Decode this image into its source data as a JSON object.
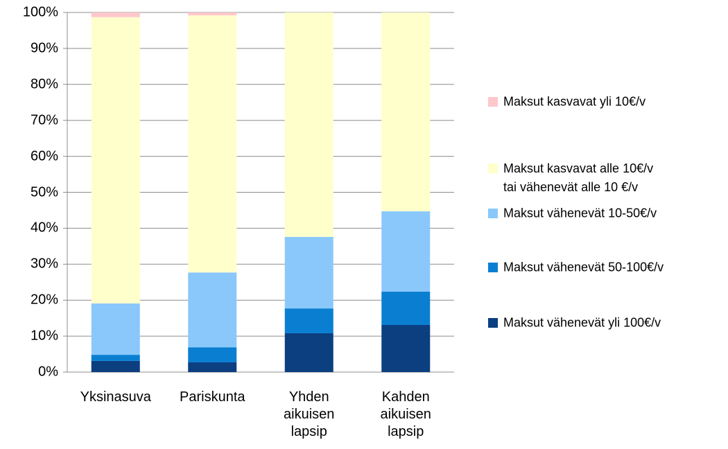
{
  "chart_data": {
    "type": "stacked_bar",
    "categories": [
      "Yksinasuva",
      "Pariskunta",
      "Yhden\naikuisen\nlapsip",
      "Kahden\naikuisen\nlapsip"
    ],
    "series": [
      {
        "name": "Maksut vähenevät yli 100€/v",
        "color": "#0b3f80",
        "values": [
          3.1,
          2.7,
          10.8,
          13.1
        ]
      },
      {
        "name": "Maksut vähenevät 50-100€/v",
        "color": "#0a7fd2",
        "values": [
          1.7,
          4.2,
          6.9,
          9.3
        ]
      },
      {
        "name": "Maksut vähenevät 10-50€/v",
        "color": "#8ac8fb",
        "values": [
          14.3,
          20.8,
          19.9,
          22.3
        ]
      },
      {
        "name": "Maksut kasvavat alle 10€/v\ntai vähenevät  alle 10 €/v",
        "color": "#ffffcc",
        "values": [
          79.6,
          71.5,
          62.4,
          55.3
        ]
      },
      {
        "name": "Maksut kasvavat yli 10€/v",
        "color": "#ffc7cb",
        "values": [
          1.3,
          0.8,
          0,
          0
        ]
      }
    ],
    "ylim": [
      0,
      100
    ],
    "yticks": [
      {
        "value": 0,
        "label": "0%"
      },
      {
        "value": 10,
        "label": "10%"
      },
      {
        "value": 20,
        "label": "20%"
      },
      {
        "value": 30,
        "label": "30%"
      },
      {
        "value": 40,
        "label": "40%"
      },
      {
        "value": 50,
        "label": "50%"
      },
      {
        "value": 60,
        "label": "60%"
      },
      {
        "value": 70,
        "label": "70%"
      },
      {
        "value": 80,
        "label": "80%"
      },
      {
        "value": 90,
        "label": "90%"
      },
      {
        "value": 100,
        "label": "100%"
      }
    ],
    "grid": true
  }
}
